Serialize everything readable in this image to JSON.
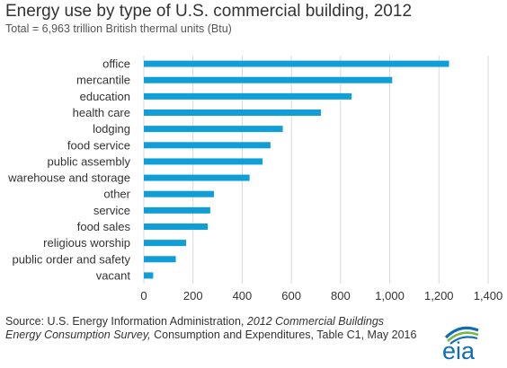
{
  "title": "Energy use by type of U.S. commercial building, 2012",
  "subtitle": "Total = 6,963 trillion British thermal units (Btu)",
  "source": {
    "prefix": "Source: U.S. Energy Information  Administration, ",
    "italic_a": "2012 Commercial Buildings",
    "italic_b": "Energy Consumption Survey,",
    "suffix": " Consumption and Expenditures, Table C1, May 2016"
  },
  "logo": {
    "text": "eia"
  },
  "colors": {
    "bar": "#0f9ed5",
    "grid": "#d9d9d9",
    "logo_blue": "#0f6db5",
    "logo_green": "#7ab648"
  },
  "chart_data": {
    "type": "bar",
    "orientation": "horizontal",
    "categories": [
      "office",
      "mercantile",
      "education",
      "health care",
      "lodging",
      "food service",
      "public assembly",
      "warehouse and storage",
      "other",
      "service",
      "food sales",
      "religious worship",
      "public order and safety",
      "vacant"
    ],
    "values": [
      1241,
      1010,
      845,
      720,
      565,
      515,
      483,
      430,
      285,
      270,
      260,
      172,
      130,
      38
    ],
    "xlim": [
      0,
      1400
    ],
    "xticks": [
      0,
      200,
      400,
      600,
      800,
      1000,
      1200,
      1400
    ],
    "xtick_labels": [
      "0",
      "200",
      "400",
      "600",
      "800",
      "1,000",
      "1,200",
      "1,400"
    ],
    "grid": "vertical",
    "legend": "none"
  }
}
